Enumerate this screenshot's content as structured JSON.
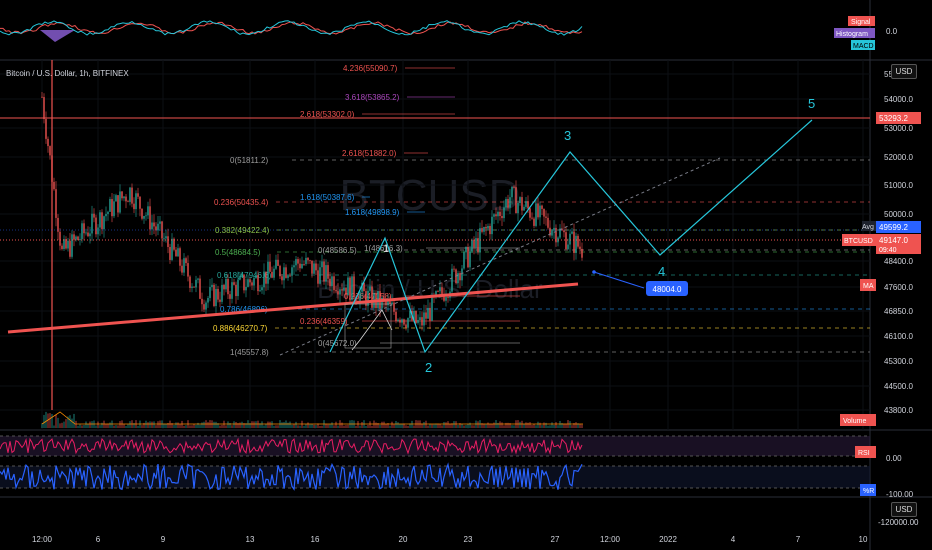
{
  "symbol_title": "Bitcoin / U.S. Dollar, 1h, BITFINEX",
  "watermark": {
    "ticker": "BTCUSD",
    "name": "Bitcoin / U.S. Dollar"
  },
  "currency_button": "USD",
  "macd_pane": {
    "legend": [
      "Signal",
      "Histogram",
      "MACD"
    ],
    "scale_label": "0.0",
    "colors": {
      "signal": "#ef5350",
      "histogram": "#7e57c2",
      "macd": "#26c6da"
    }
  },
  "price_scale": {
    "labels": [
      "55000.0",
      "54000.0",
      "53000.0",
      "52000.0",
      "51000.0",
      "50000.0",
      "48400.0",
      "47600.0",
      "46850.0",
      "46100.0",
      "45300.0",
      "44500.0",
      "43800.0"
    ],
    "top_cut": "55"
  },
  "price_tags": [
    {
      "name": "resistance",
      "text": "53293.2",
      "color": "#ef5350"
    },
    {
      "name": "avg",
      "text": "Avg",
      "value": "49599.2",
      "color": "#2962ff"
    },
    {
      "name": "last",
      "text": "BTCUSD",
      "value": "49147.0",
      "sub": "09:40",
      "color": "#ef5350"
    },
    {
      "name": "ma",
      "text": "MA",
      "color": "#ef5350"
    },
    {
      "name": "volume",
      "text": "Volume",
      "color": "#ef5350"
    },
    {
      "name": "rsi",
      "text": "RSI",
      "color": "#ef5350"
    },
    {
      "name": "wr",
      "text": "%R",
      "color": "#2962ff"
    }
  ],
  "fib_levels": [
    {
      "label": "4.236(55090.7)",
      "color": "#ef5350"
    },
    {
      "label": "3.618(53865.2)",
      "color": "#ab47bc"
    },
    {
      "label": "2.618(53302.0)",
      "color": "#ef5350"
    },
    {
      "label": "2.618(51882.0)",
      "color": "#ef5350"
    },
    {
      "label": "0(51811.2)",
      "color": "#9e9e9e"
    },
    {
      "label": "1.618(50387.6)",
      "color": "#2196f3"
    },
    {
      "label": "1.618(49898.9)",
      "color": "#2196f3"
    },
    {
      "label": "0.236(50435.4)",
      "color": "#ef5350"
    },
    {
      "label": "0.382(49422.4)",
      "color": "#8bc34a"
    },
    {
      "label": "0.5(48684.5)",
      "color": "#4caf50"
    },
    {
      "label": "1(48616.3)",
      "color": "#9e9e9e"
    },
    {
      "label": "0(48586.5)",
      "color": "#9e9e9e"
    },
    {
      "label": "0.618(47946.6)",
      "color": "#26a69a"
    },
    {
      "label": "0.236(47158)",
      "color": "#ef5350"
    },
    {
      "label": "0.786(46896)",
      "color": "#2196f3"
    },
    {
      "label": "0.236(46359)",
      "color": "#ef5350"
    },
    {
      "label": "0.886(46270.7)",
      "color": "#fdd835"
    },
    {
      "label": "0(45672.0)",
      "color": "#9e9e9e"
    },
    {
      "label": "1(45557.8)",
      "color": "#9e9e9e"
    }
  ],
  "waves": [
    "2",
    "3",
    "4",
    "5",
    "1"
  ],
  "target_label": "48004.0",
  "rsi_pane": {
    "scale_label": "0.00"
  },
  "wr_pane": {
    "scale_label": "-100.00"
  },
  "lower_scale": {
    "usd": "USD",
    "value": "-120000.00"
  },
  "time_axis": [
    "12:00",
    "6",
    "9",
    "13",
    "16",
    "20",
    "23",
    "27",
    "12:00",
    "2022",
    "4",
    "7",
    "10"
  ],
  "chart_data": {
    "type": "line",
    "title": "Bitcoin / U.S. Dollar, 1h, BITFINEX",
    "xlabel": "",
    "ylabel": "USD",
    "ylim": [
      43500,
      55300
    ],
    "x": [
      "12:00",
      "6",
      "9",
      "13",
      "16",
      "20",
      "23",
      "27"
    ],
    "series": [
      {
        "name": "BTCUSD",
        "values": [
          54500,
          49000,
          51200,
          47400,
          48700,
          46500,
          51000,
          49147
        ]
      },
      {
        "name": "MA",
        "values": [
          46200,
          46350,
          46500,
          46700,
          46900,
          47150,
          47400,
          47600
        ]
      }
    ],
    "wave_projection": [
      {
        "label": "2",
        "value": 45300
      },
      {
        "label": "3",
        "value": 52000
      },
      {
        "label": "4",
        "value": 48700
      },
      {
        "label": "5",
        "value": 53300
      }
    ],
    "grid": true
  }
}
